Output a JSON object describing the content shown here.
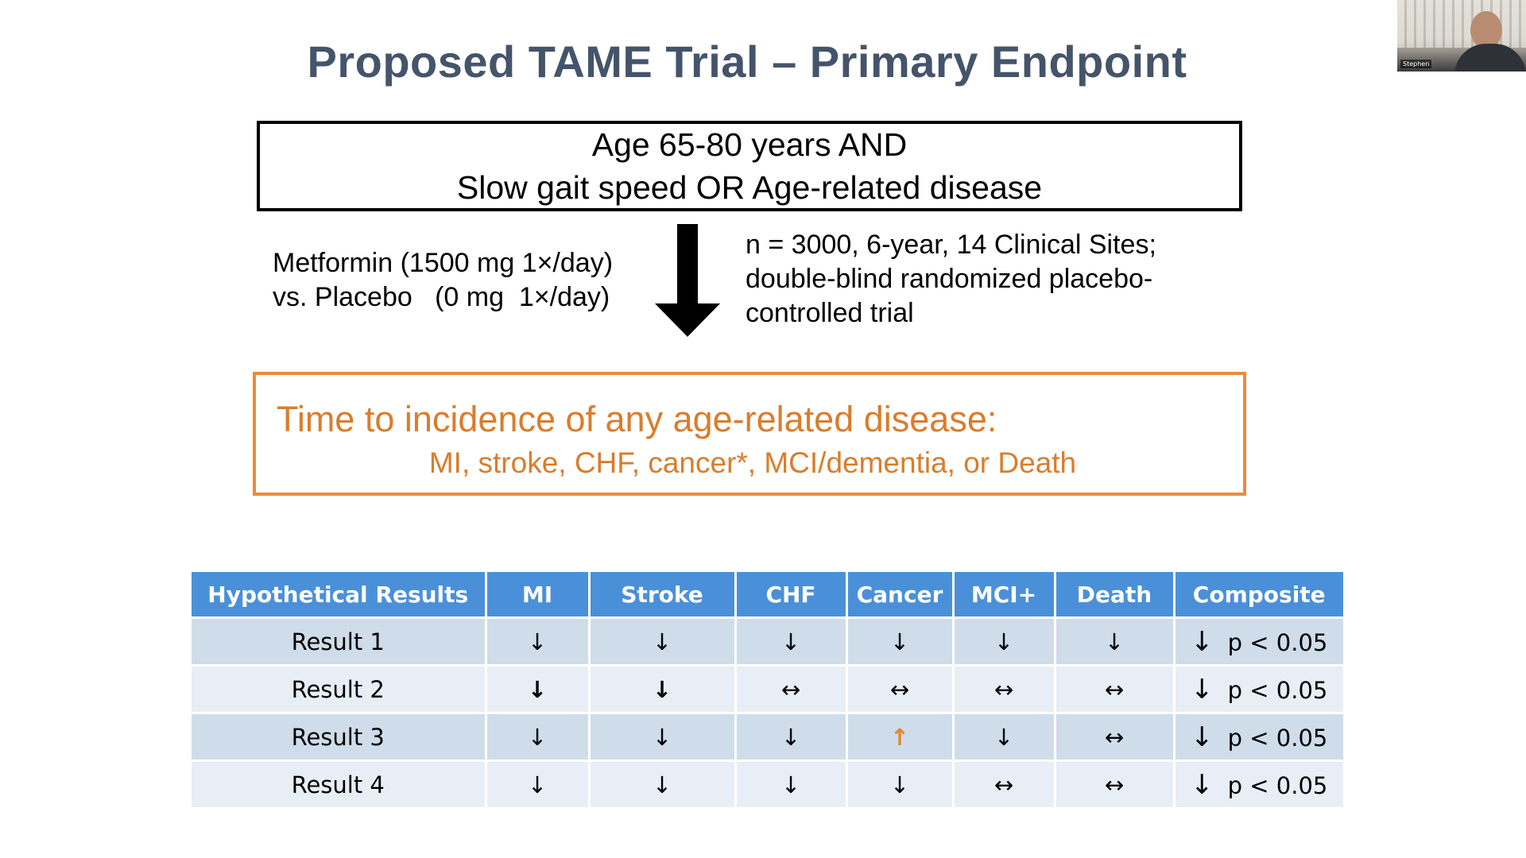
{
  "slide": {
    "title": "Proposed TAME Trial – Primary Endpoint",
    "criteria": {
      "line1": "Age 65-80 years AND",
      "line2": "Slow gait speed OR Age-related disease"
    },
    "arms": {
      "line1": "Metformin (1500 mg 1×/day)",
      "line2": "vs. Placebo   (0 mg  1×/day)"
    },
    "design": {
      "line1": "n = 3000, 6-year, 14 Clinical Sites;",
      "line2": "double-blind randomized placebo-",
      "line3": "controlled trial"
    },
    "endpoint": {
      "line1": "Time to incidence of any age-related disease:",
      "line2": "MI, stroke, CHF, cancer*, MCI/dementia, or Death"
    },
    "table": {
      "headers": [
        "Hypothetical Results",
        "MI",
        "Stroke",
        "CHF",
        "Cancer",
        "MCI+",
        "Death",
        "Composite"
      ],
      "rows": [
        {
          "label": "Result 1",
          "cells": [
            "↓",
            "↓",
            "↓",
            "↓",
            "↓",
            "↓"
          ],
          "composite_arrow": "↓",
          "composite_text": "p < 0.05"
        },
        {
          "label": "Result 2",
          "cells": [
            "↓",
            "↓",
            "↔",
            "↔",
            "↔",
            "↔"
          ],
          "composite_arrow": "↓",
          "composite_text": "p < 0.05"
        },
        {
          "label": "Result 3",
          "cells": [
            "↓",
            "↓",
            "↓",
            "↑",
            "↓",
            "↔"
          ],
          "composite_arrow": "↓",
          "composite_text": "p < 0.05"
        },
        {
          "label": "Result 4",
          "cells": [
            "↓",
            "↓",
            "↓",
            "↓",
            "↔",
            "↔"
          ],
          "composite_arrow": "↓",
          "composite_text": "p < 0.05"
        }
      ]
    },
    "colors": {
      "title": "#44546a",
      "endpoint_border": "#ed8a3a",
      "endpoint_text": "#d97d2b",
      "table_header": "#4a90d9",
      "row_dark": "#cfdcea",
      "row_light": "#e8eef5",
      "up_arrow": "#e0892e"
    }
  },
  "video": {
    "participant_name": "Stephen"
  }
}
